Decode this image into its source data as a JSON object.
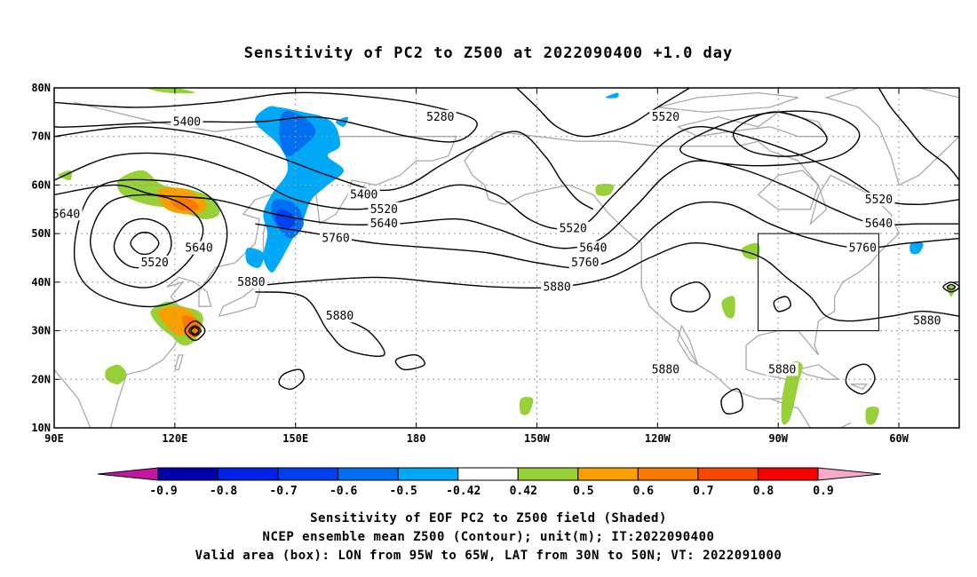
{
  "title": "Sensitivity of PC2 to Z500 at 2022090400 +1.0 day",
  "map": {
    "lon_ticks": [
      {
        "lon": 90,
        "label": "90E"
      },
      {
        "lon": 120,
        "label": "120E"
      },
      {
        "lon": 150,
        "label": "150E"
      },
      {
        "lon": 180,
        "label": "180"
      },
      {
        "lon": 210,
        "label": "150W"
      },
      {
        "lon": 240,
        "label": "120W"
      },
      {
        "lon": 270,
        "label": "90W"
      },
      {
        "lon": 300,
        "label": "60W"
      }
    ],
    "lat_ticks": [
      {
        "lat": 80,
        "label": "80N"
      },
      {
        "lat": 70,
        "label": "70N"
      },
      {
        "lat": 60,
        "label": "60N"
      },
      {
        "lat": 50,
        "label": "50N"
      },
      {
        "lat": 40,
        "label": "40N"
      },
      {
        "lat": 30,
        "label": "30N"
      },
      {
        "lat": 20,
        "label": "20N"
      },
      {
        "lat": 10,
        "label": "10N"
      }
    ],
    "lon_range": [
      90,
      315
    ],
    "lat_range": [
      10,
      80
    ],
    "grid": "dotted",
    "valid_box": {
      "lon": [
        265,
        295
      ],
      "lat": [
        30,
        50
      ]
    },
    "contour_labels": [
      {
        "text": "5400",
        "lon": 123,
        "lat": 73
      },
      {
        "text": "5280",
        "lon": 186,
        "lat": 74
      },
      {
        "text": "5520",
        "lon": 242,
        "lat": 74
      },
      {
        "text": "5400",
        "lon": 167,
        "lat": 58
      },
      {
        "text": "5520",
        "lon": 172,
        "lat": 55
      },
      {
        "text": "5640",
        "lon": 172,
        "lat": 52
      },
      {
        "text": "5640",
        "lon": 93,
        "lat": 54
      },
      {
        "text": "5640",
        "lon": 126,
        "lat": 47
      },
      {
        "text": "5520",
        "lon": 115,
        "lat": 44
      },
      {
        "text": "5760",
        "lon": 160,
        "lat": 49
      },
      {
        "text": "5880",
        "lon": 139,
        "lat": 40
      },
      {
        "text": "5880",
        "lon": 161,
        "lat": 33
      },
      {
        "text": "5520",
        "lon": 219,
        "lat": 51
      },
      {
        "text": "5640",
        "lon": 224,
        "lat": 47
      },
      {
        "text": "5760",
        "lon": 222,
        "lat": 44
      },
      {
        "text": "5880",
        "lon": 215,
        "lat": 39
      },
      {
        "text": "5880",
        "lon": 242,
        "lat": 22
      },
      {
        "text": "5880",
        "lon": 271,
        "lat": 22
      },
      {
        "text": "5520",
        "lon": 295,
        "lat": 57
      },
      {
        "text": "5640",
        "lon": 295,
        "lat": 52
      },
      {
        "text": "5760",
        "lon": 291,
        "lat": 47
      },
      {
        "text": "5880",
        "lon": 307,
        "lat": 32
      }
    ]
  },
  "colorbar": {
    "labels": [
      "-0.9",
      "-0.8",
      "-0.7",
      "-0.6",
      "-0.5",
      "-0.42",
      "0.42",
      "0.5",
      "0.6",
      "0.7",
      "0.8",
      "0.9"
    ],
    "colors": [
      "#0000a8",
      "#0022e8",
      "#0040f0",
      "#0070f0",
      "#00a8f8",
      "#ffffff",
      "#98d038",
      "#f8a000",
      "#f87800",
      "#f84800",
      "#f80000"
    ],
    "low_end_color": "#c0189e",
    "high_end_color": "#f8a8c8"
  },
  "captions": {
    "line1": "Sensitivity of EOF PC2 to Z500 field (Shaded)",
    "line2": "NCEP ensemble mean Z500 (Contour); unit(m); IT:2022090400",
    "line3": "Valid area (box): LON from 95W to 65W, LAT from 30N to 50N; VT: 2022091000"
  }
}
